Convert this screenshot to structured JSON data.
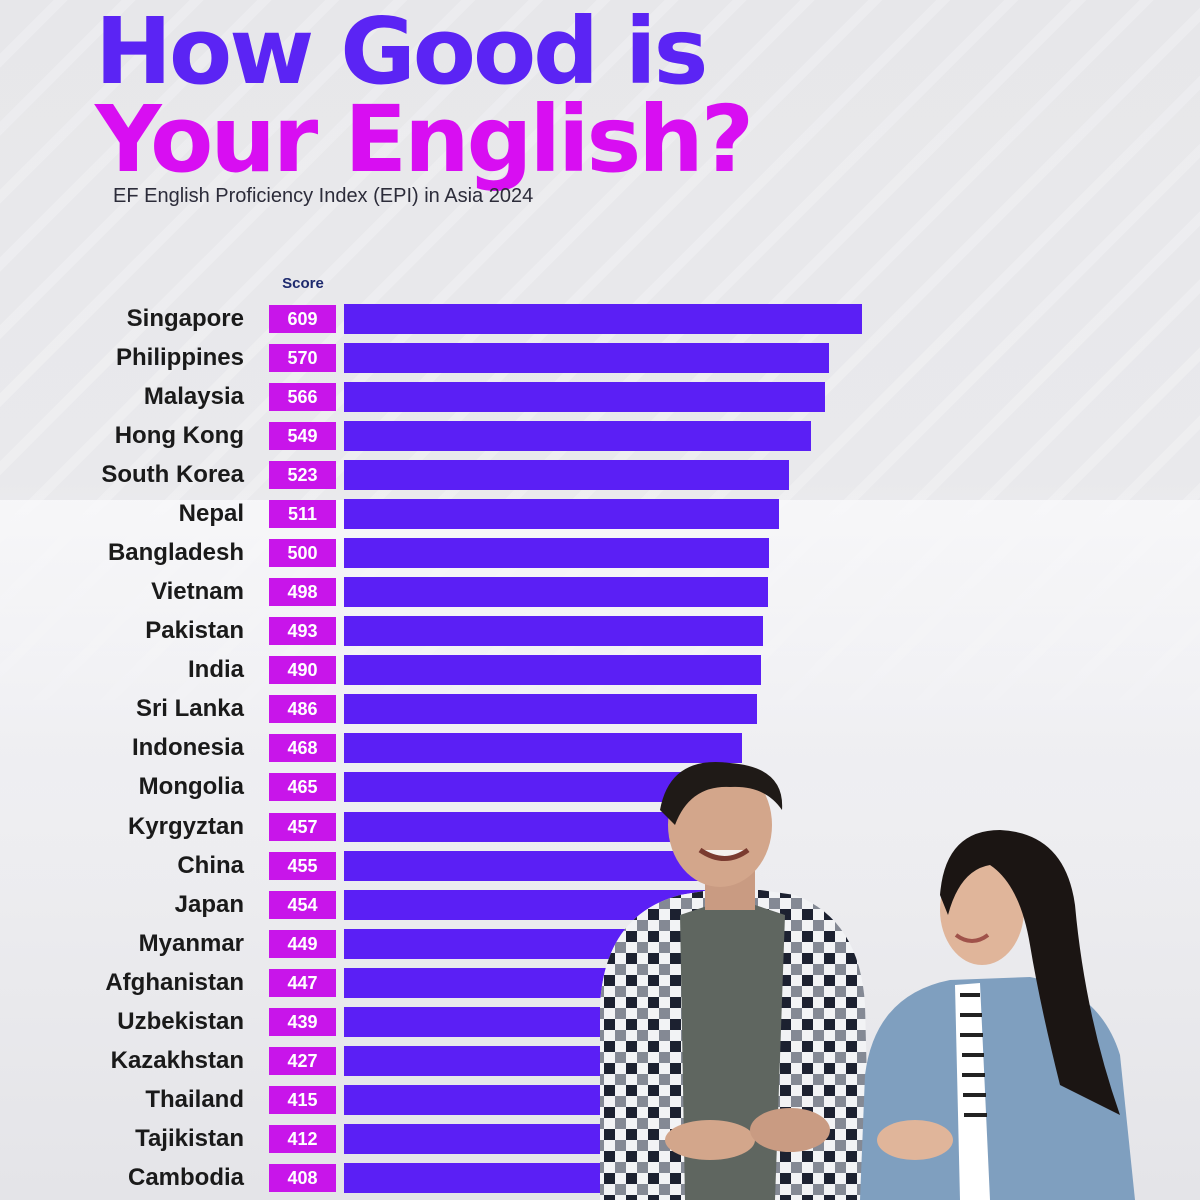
{
  "header": {
    "title_line1": "How Good is",
    "title_line2": "Your English?",
    "subtitle": "EF English Proficiency Index (EPI) in Asia 2024"
  },
  "colors": {
    "title_line1": "#5b24f4",
    "title_line2": "#d80ef2",
    "score_box": "#c815ea",
    "bar": "#5b1ff5"
  },
  "chart_data": {
    "type": "bar",
    "orientation": "horizontal",
    "title": "How Good is Your English?",
    "subtitle": "EF English Proficiency Index (EPI) in Asia 2024",
    "value_header": "Score",
    "categories": [
      "Singapore",
      "Philippines",
      "Malaysia",
      "Hong Kong",
      "South Korea",
      "Nepal",
      "Bangladesh",
      "Vietnam",
      "Pakistan",
      "India",
      "Sri Lanka",
      "Indonesia",
      "Mongolia",
      "Kyrgyztan",
      "China",
      "Japan",
      "Myanmar",
      "Afghanistan",
      "Uzbekistan",
      "Kazakhstan",
      "Thailand",
      "Tajikistan",
      "Cambodia"
    ],
    "values": [
      609,
      570,
      566,
      549,
      523,
      511,
      500,
      498,
      493,
      490,
      486,
      468,
      465,
      457,
      455,
      454,
      449,
      447,
      439,
      427,
      415,
      412,
      408
    ],
    "data_labels": true,
    "grid": false
  }
}
